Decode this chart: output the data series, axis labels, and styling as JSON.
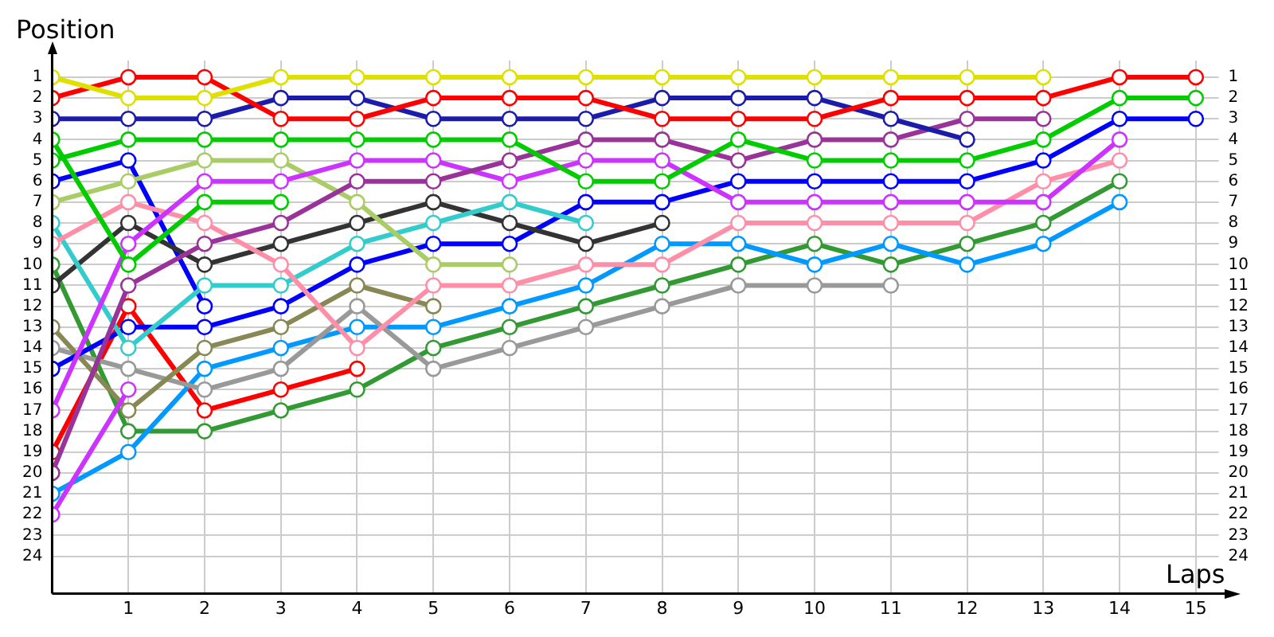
{
  "chart_data": {
    "type": "line",
    "xlabel": "Laps",
    "ylabel": "Position",
    "x": [
      0,
      1,
      2,
      3,
      4,
      5,
      6,
      7,
      8,
      9,
      10,
      11,
      12,
      13,
      14,
      15
    ],
    "xlim": [
      0,
      15.3
    ],
    "xticks": [
      1,
      2,
      3,
      4,
      5,
      6,
      7,
      8,
      9,
      10,
      11,
      12,
      13,
      14,
      15
    ],
    "ylim": [
      25.8,
      0.2
    ],
    "yticks": [
      1,
      2,
      3,
      4,
      5,
      6,
      7,
      8,
      9,
      10,
      11,
      12,
      13,
      14,
      15,
      16,
      17,
      18,
      19,
      20,
      21,
      22,
      23,
      24
    ],
    "y2lim": [
      25.8,
      0.2
    ],
    "y2ticks": [
      1,
      2,
      3,
      4,
      5,
      6,
      7,
      8,
      9,
      10,
      11,
      12,
      13,
      14,
      15,
      16,
      17,
      18,
      19,
      20,
      21,
      22,
      23,
      24
    ],
    "grid": true,
    "legend": false,
    "marker": "circle",
    "line_style": "solid",
    "series": [
      {
        "color": "#e0e000",
        "values": [
          1,
          2,
          2,
          1,
          1,
          1,
          1,
          1,
          1,
          1,
          1,
          1,
          1,
          1,
          null,
          null
        ]
      },
      {
        "color": "#ff0000",
        "values": [
          2,
          1,
          1,
          3,
          3,
          2,
          2,
          2,
          3,
          3,
          3,
          2,
          2,
          2,
          1,
          1
        ]
      },
      {
        "color": "#1c1caa",
        "values": [
          3,
          3,
          3,
          2,
          2,
          3,
          3,
          3,
          2,
          2,
          2,
          3,
          4,
          null,
          null,
          null
        ]
      },
      {
        "color": "#00cc00",
        "values": [
          5,
          4,
          4,
          4,
          4,
          4,
          4,
          6,
          6,
          4,
          5,
          5,
          5,
          4,
          2,
          2
        ]
      },
      {
        "color": "#00cc00",
        "values": [
          4,
          10,
          7,
          7,
          null,
          null,
          null,
          null,
          null,
          null,
          null,
          null,
          null,
          null,
          null,
          null
        ]
      },
      {
        "color": "#993399",
        "values": [
          20,
          11,
          9,
          8,
          6,
          6,
          5,
          4,
          4,
          5,
          4,
          4,
          3,
          3,
          null,
          null
        ]
      },
      {
        "color": "#cc33ff",
        "values": [
          17,
          9,
          6,
          6,
          5,
          5,
          6,
          5,
          5,
          7,
          7,
          7,
          7,
          7,
          4,
          null
        ]
      },
      {
        "color": "#cc33ff",
        "values": [
          22,
          16,
          null,
          null,
          null,
          null,
          null,
          null,
          null,
          null,
          null,
          null,
          null,
          null,
          null,
          null
        ]
      },
      {
        "color": "#aacc66",
        "values": [
          7,
          6,
          5,
          5,
          7,
          10,
          10,
          null,
          null,
          null,
          null,
          null,
          null,
          null,
          null,
          null
        ]
      },
      {
        "color": "#ff8fa8",
        "values": [
          9,
          7,
          8,
          10,
          14,
          11,
          11,
          10,
          10,
          8,
          8,
          8,
          8,
          6,
          5,
          null
        ]
      },
      {
        "color": "#33cccc",
        "values": [
          8,
          14,
          11,
          11,
          9,
          8,
          7,
          8,
          null,
          null,
          null,
          null,
          null,
          null,
          null,
          null
        ]
      },
      {
        "color": "#333333",
        "values": [
          11,
          8,
          10,
          9,
          8,
          7,
          8,
          9,
          8,
          null,
          null,
          null,
          null,
          null,
          null,
          null
        ]
      },
      {
        "color": "#0000ff",
        "values": [
          15,
          13,
          13,
          12,
          10,
          9,
          9,
          7,
          7,
          6,
          6,
          6,
          6,
          5,
          3,
          3
        ]
      },
      {
        "color": "#0000ff",
        "values": [
          6,
          5,
          12,
          null,
          null,
          null,
          null,
          null,
          null,
          null,
          null,
          null,
          null,
          null,
          null,
          null
        ]
      },
      {
        "color": "#888855",
        "values": [
          13,
          17,
          14,
          13,
          11,
          12,
          null,
          null,
          null,
          null,
          null,
          null,
          null,
          null,
          null,
          null
        ]
      },
      {
        "color": "#999999",
        "values": [
          14,
          15,
          16,
          15,
          12,
          15,
          14,
          13,
          12,
          11,
          11,
          11,
          null,
          null,
          null,
          null
        ]
      },
      {
        "color": "#0099ff",
        "values": [
          21,
          19,
          15,
          14,
          13,
          13,
          12,
          11,
          9,
          9,
          10,
          9,
          10,
          9,
          7,
          null
        ]
      },
      {
        "color": "#339933",
        "values": [
          10,
          18,
          18,
          17,
          16,
          14,
          13,
          12,
          11,
          10,
          9,
          10,
          9,
          8,
          6,
          null
        ]
      },
      {
        "color": "#ff0000",
        "values": [
          19,
          12,
          17,
          16,
          15,
          null,
          null,
          null,
          null,
          null,
          null,
          null,
          null,
          null,
          null,
          null
        ]
      }
    ]
  }
}
